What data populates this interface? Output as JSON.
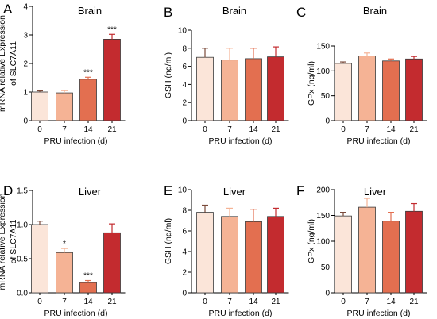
{
  "chart_data": [
    {
      "panel": "A",
      "type": "bar",
      "title": "Brain",
      "xlabel": "PRU infection (d)",
      "ylabel": "mRNA relative Expression of SLC7A11",
      "categories": [
        "0",
        "7",
        "14",
        "21"
      ],
      "values": [
        1.0,
        0.97,
        1.45,
        2.85
      ],
      "errors": [
        0.04,
        0.08,
        0.07,
        0.17
      ],
      "significance": [
        "",
        "",
        "***",
        "***"
      ],
      "ylim": [
        0,
        4
      ],
      "yticks": [
        "0",
        "1",
        "2",
        "3",
        "4"
      ],
      "grid": false,
      "colors": [
        "#fbe5d9",
        "#f5b395",
        "#e36f50",
        "#c32b2f"
      ]
    },
    {
      "panel": "B",
      "type": "bar",
      "title": "Brain",
      "xlabel": "PRU infection (d)",
      "ylabel": "GSH  (ng/ml)",
      "categories": [
        "0",
        "7",
        "14",
        "21"
      ],
      "values": [
        7.0,
        6.7,
        6.85,
        7.05
      ],
      "errors": [
        1.0,
        1.3,
        1.15,
        1.1
      ],
      "significance": [
        "",
        "",
        "",
        ""
      ],
      "ylim": [
        0,
        10
      ],
      "yticks": [
        "0",
        "2",
        "4",
        "6",
        "8",
        "10"
      ],
      "grid": false,
      "colors": [
        "#fbe5d9",
        "#f5b395",
        "#e36f50",
        "#c32b2f"
      ]
    },
    {
      "panel": "C",
      "type": "bar",
      "title": "Brain",
      "xlabel": "PRU infection (d)",
      "ylabel": "GPx  (ng/ml)",
      "categories": [
        "0",
        "7",
        "14",
        "21"
      ],
      "values": [
        115,
        130,
        120,
        124
      ],
      "errors": [
        3,
        6,
        4,
        5
      ],
      "significance": [
        "",
        "",
        "",
        ""
      ],
      "ylim": [
        0,
        150
      ],
      "yticks": [
        "0",
        "50",
        "100",
        "150"
      ],
      "grid": false,
      "colors": [
        "#fbe5d9",
        "#f5b395",
        "#e36f50",
        "#c32b2f"
      ]
    },
    {
      "panel": "D",
      "type": "bar",
      "title": "Liver",
      "xlabel": "PRU infection (d)",
      "ylabel": "mRNA relative Expression of SLC7A11",
      "categories": [
        "0",
        "7",
        "14",
        "21"
      ],
      "values": [
        1.0,
        0.59,
        0.15,
        0.88
      ],
      "errors": [
        0.05,
        0.06,
        0.03,
        0.13
      ],
      "significance": [
        "",
        "*",
        "***",
        ""
      ],
      "ylim": [
        0,
        1.5
      ],
      "yticks": [
        "0.0",
        "0.5",
        "1.0",
        "1.5"
      ],
      "grid": false,
      "colors": [
        "#fbe5d9",
        "#f5b395",
        "#e36f50",
        "#c32b2f"
      ]
    },
    {
      "panel": "E",
      "type": "bar",
      "title": "Liver",
      "xlabel": "PRU infection (d)",
      "ylabel": "GSH  (ng/ml)",
      "categories": [
        "0",
        "7",
        "14",
        "21"
      ],
      "values": [
        7.8,
        7.4,
        6.9,
        7.4
      ],
      "errors": [
        0.7,
        0.8,
        1.2,
        0.8
      ],
      "significance": [
        "",
        "",
        "",
        ""
      ],
      "ylim": [
        0,
        10
      ],
      "yticks": [
        "0",
        "2",
        "4",
        "6",
        "8",
        "10"
      ],
      "grid": false,
      "colors": [
        "#fbe5d9",
        "#f5b395",
        "#e36f50",
        "#c32b2f"
      ]
    },
    {
      "panel": "F",
      "type": "bar",
      "title": "Liver",
      "xlabel": "PRU infection (d)",
      "ylabel": "GPx  (ng/ml)",
      "categories": [
        "0",
        "7",
        "14",
        "21"
      ],
      "values": [
        149,
        166,
        139,
        158
      ],
      "errors": [
        7,
        17,
        17,
        15
      ],
      "significance": [
        "",
        "",
        "",
        ""
      ],
      "ylim": [
        0,
        200
      ],
      "yticks": [
        "0",
        "50",
        "100",
        "150",
        "200"
      ],
      "grid": false,
      "colors": [
        "#fbe5d9",
        "#f5b395",
        "#e36f50",
        "#c32b2f"
      ]
    }
  ]
}
